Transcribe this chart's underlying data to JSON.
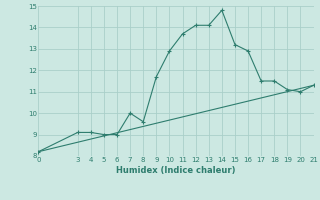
{
  "xlabel": "Humidex (Indice chaleur)",
  "line1_x": [
    0,
    3,
    4,
    5,
    6,
    7,
    8,
    9,
    10,
    11,
    12,
    13,
    14,
    15,
    16,
    17,
    18,
    19,
    20,
    21
  ],
  "line1_y": [
    8.2,
    9.1,
    9.1,
    9.0,
    9.0,
    10.0,
    9.6,
    11.7,
    12.9,
    13.7,
    14.1,
    14.1,
    14.8,
    13.2,
    12.9,
    11.5,
    11.5,
    11.1,
    11.0,
    11.3
  ],
  "line2_x": [
    0,
    21
  ],
  "line2_y": [
    8.2,
    11.3
  ],
  "line_color": "#2e7d6e",
  "bg_color": "#cce8e2",
  "grid_color": "#aacfc9",
  "xlim": [
    0,
    21
  ],
  "ylim": [
    8,
    15
  ],
  "xticks": [
    0,
    3,
    4,
    5,
    6,
    7,
    8,
    9,
    10,
    11,
    12,
    13,
    14,
    15,
    16,
    17,
    18,
    19,
    20,
    21
  ],
  "yticks": [
    8,
    9,
    10,
    11,
    12,
    13,
    14,
    15
  ],
  "marker": "+"
}
